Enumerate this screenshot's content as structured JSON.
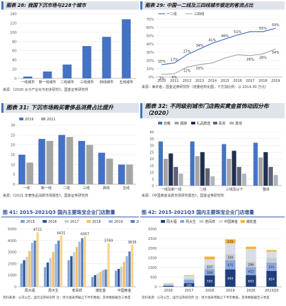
{
  "panels": {
    "p1": {
      "header": "图表 28: 我国下沉市场与228个城市",
      "source": "来源：《2020 女子产业化与初步研究》，国金证券研究所"
    },
    "p2": {
      "header": "图表 29: 中国一二线及三四线城市锁定的客流占比",
      "source": "来源：美年者，国金证券研究所（增量结构化图，下方加比例：以 2014-30 万元）"
    },
    "p3": {
      "header": "图表 31: 下沉市场购买奢侈品消费占比提升",
      "source": "来源：《2021 年奢侈品消费市场报告》，国金证券研究所"
    },
    "p4": {
      "header": "图表 32: 不同级别城市门店购买黄金首饰动因分布（2020）",
      "source": "来源：《中国黄金消费市场研究报告》，国金证券研究所"
    },
    "p5": {
      "header": "图 41: 2015-2021Q3 国内主要珠宝企业门店数量",
      "source": "资料来源：公司公告，国元证券研究所  注：周大福采用截止下半年数据，其余数据截至三季度"
    },
    "p6": {
      "header": "图 42: 2015-2021Q3 国内主要珠宝企业门店增量",
      "source": "资料来源：公司公告，国元证券研究所  注：周大福采用截止下半年数据，其余数据截至三季度"
    }
  },
  "chart_data": [
    {
      "id": "p1",
      "type": "bar",
      "categories": [
        "一线城市",
        "新一线城市",
        "二线城市",
        "三线城市",
        "四线城市",
        "五线城市"
      ],
      "values": [
        4,
        15,
        30,
        70,
        90,
        128
      ],
      "ylim": [
        0,
        140
      ],
      "yticks": [
        0,
        20,
        40,
        60,
        80,
        100,
        120,
        140
      ],
      "colors": {
        "bar": "#4472c4"
      }
    },
    {
      "id": "p2",
      "type": "line",
      "x": [
        "2010",
        "2011",
        "2012",
        "2013",
        "2014",
        "2015",
        "2016",
        "2017",
        "2018",
        "2019"
      ],
      "series": [
        {
          "name": "一二线",
          "values": [
            15,
            17,
            27,
            34,
            41,
            46,
            51,
            55,
            55,
            59
          ],
          "labels": [
            "15%",
            "17%",
            "27%",
            "34%",
            "41%",
            "46%",
            "51%",
            "",
            "55%",
            "59%"
          ],
          "color": "#4472c4"
        },
        {
          "name": "三四线",
          "values": [
            3,
            4,
            12,
            15,
            17,
            23,
            27,
            26,
            28,
            34
          ],
          "labels": [
            "3%",
            "4%",
            "12%",
            "15%",
            "",
            "",
            "",
            "26%",
            "28%",
            "34%"
          ],
          "color": "#a5a5a5"
        }
      ],
      "ylim": [
        0,
        70
      ],
      "yticks": [
        0,
        10,
        20,
        30,
        40,
        50,
        60,
        70
      ],
      "legend": "top-left"
    },
    {
      "id": "p3",
      "type": "bar",
      "categories": [
        "一线",
        "新一线",
        "二线",
        "三线",
        "四线",
        "五线"
      ],
      "series": [
        {
          "name": "2019",
          "values": [
            15,
            23,
            25,
            22,
            16,
            10
          ],
          "color": "#4472c4"
        },
        {
          "name": "2021",
          "values": [
            11,
            22,
            24,
            20,
            13,
            10
          ],
          "color": "#a5a5a5"
        }
      ],
      "ylim": [
        0,
        30
      ],
      "yticks": [
        0,
        5,
        10,
        15,
        20,
        25,
        30
      ],
      "legend": "top"
    },
    {
      "id": "p4",
      "type": "bar",
      "categories": [
        "一线及新一线",
        "二线",
        "三线及以下",
        "整体"
      ],
      "series": [
        {
          "name": "自戴",
          "values": [
            33,
            33,
            31,
            32
          ],
          "color": "#4472c4"
        },
        {
          "name": "婚嫁",
          "values": [
            20,
            22,
            20,
            21
          ],
          "color": "#a5a5a5"
        },
        {
          "name": "礼品赠送",
          "values": [
            24,
            25,
            26,
            25
          ],
          "color": "#222e4f"
        },
        {
          "name": "投资",
          "values": [
            14,
            13,
            14,
            14
          ],
          "color": "#5b6477"
        },
        {
          "name": "其他",
          "values": [
            9,
            7,
            9,
            8
          ],
          "color": "#b0b4bb"
        }
      ],
      "ylim": [
        0,
        40
      ],
      "yticks": [
        0,
        5,
        10,
        15,
        20,
        25,
        30,
        35,
        40
      ],
      "legend": "top"
    },
    {
      "id": "p5",
      "type": "bar",
      "categories": [
        "周大福",
        "周大生",
        "老凤祥",
        "潮宏基",
        "中国黄金"
      ],
      "series": [
        {
          "name": "2015",
          "values": [
            2000,
            1700,
            2300,
            850,
            1400
          ],
          "color": "#7ea1d8"
        },
        {
          "name": "2016",
          "values": [
            2300,
            2100,
            2650,
            1000,
            1550
          ],
          "color": "#2e5597"
        },
        {
          "name": "2017",
          "values": [
            2600,
            2500,
            3000,
            1150,
            1750
          ],
          "color": "#c9cdd4"
        },
        {
          "name": "2018",
          "values": [
            3100,
            3000,
            3450,
            1300,
            2150
          ],
          "color": "#f2c26a"
        },
        {
          "name": "2019",
          "values": [
            3800,
            3700,
            3900,
            1450,
            2650
          ],
          "color": "#9bb7e3"
        },
        {
          "name": "2020",
          "values": [
            4000,
            4000,
            4200,
            1500,
            3050
          ],
          "color": "#5f7fbe"
        },
        {
          "name": "2021Q3",
          "values": [
            4722,
            4431,
            4357,
            3769,
            3635
          ],
          "color": "#f5d58a"
        }
      ],
      "data_labels": [
        "4722",
        "4431",
        "4357",
        "3769",
        "3635"
      ],
      "ylim": [
        0,
        5000
      ],
      "yticks": [
        0,
        1000,
        2000,
        3000,
        4000,
        5000
      ],
      "legend": "top"
    },
    {
      "id": "p6",
      "type": "bar",
      "stacked": true,
      "categories": [
        "2016",
        "2017",
        "2018",
        "2019",
        "2020",
        "2021Q3"
      ],
      "series": [
        {
          "name": "周大福",
          "values": [
            42,
            191,
            595,
            904,
            603,
            824
          ],
          "color": "#1f3e7a"
        },
        {
          "name": "周大生",
          "values": [
            56,
            167,
            326,
            471,
            412,
            431
          ],
          "color": "#8aa7dc"
        },
        {
          "name": "老凤祥",
          "values": [
            38,
            84,
            227,
            320,
            296,
            251
          ],
          "color": "#c6ccd6"
        },
        {
          "name": "中国黄金",
          "values": [
            30,
            120,
            280,
            550,
            650,
            320
          ],
          "color": "#d9dde4"
        },
        {
          "name": "潮宏基",
          "values": [
            21,
            40,
            140,
            215,
            120,
            80
          ],
          "color": "#f2b33b"
        }
      ],
      "segment_labels": [
        [
          "42",
          "56",
          "",
          "",
          ""
        ],
        [
          "191",
          "167",
          "",
          "",
          ""
        ],
        [
          "595",
          "326",
          "227",
          "",
          "140"
        ],
        [
          "904",
          "471",
          "320",
          "",
          "215"
        ],
        [
          "603",
          "412",
          "296",
          "",
          "120"
        ],
        [
          "824",
          "431",
          "",
          "",
          ""
        ]
      ],
      "ylim": [
        0,
        3000
      ],
      "yticks": [
        0,
        500,
        1000,
        1500,
        2000,
        2500,
        3000
      ],
      "legend": "top"
    }
  ]
}
